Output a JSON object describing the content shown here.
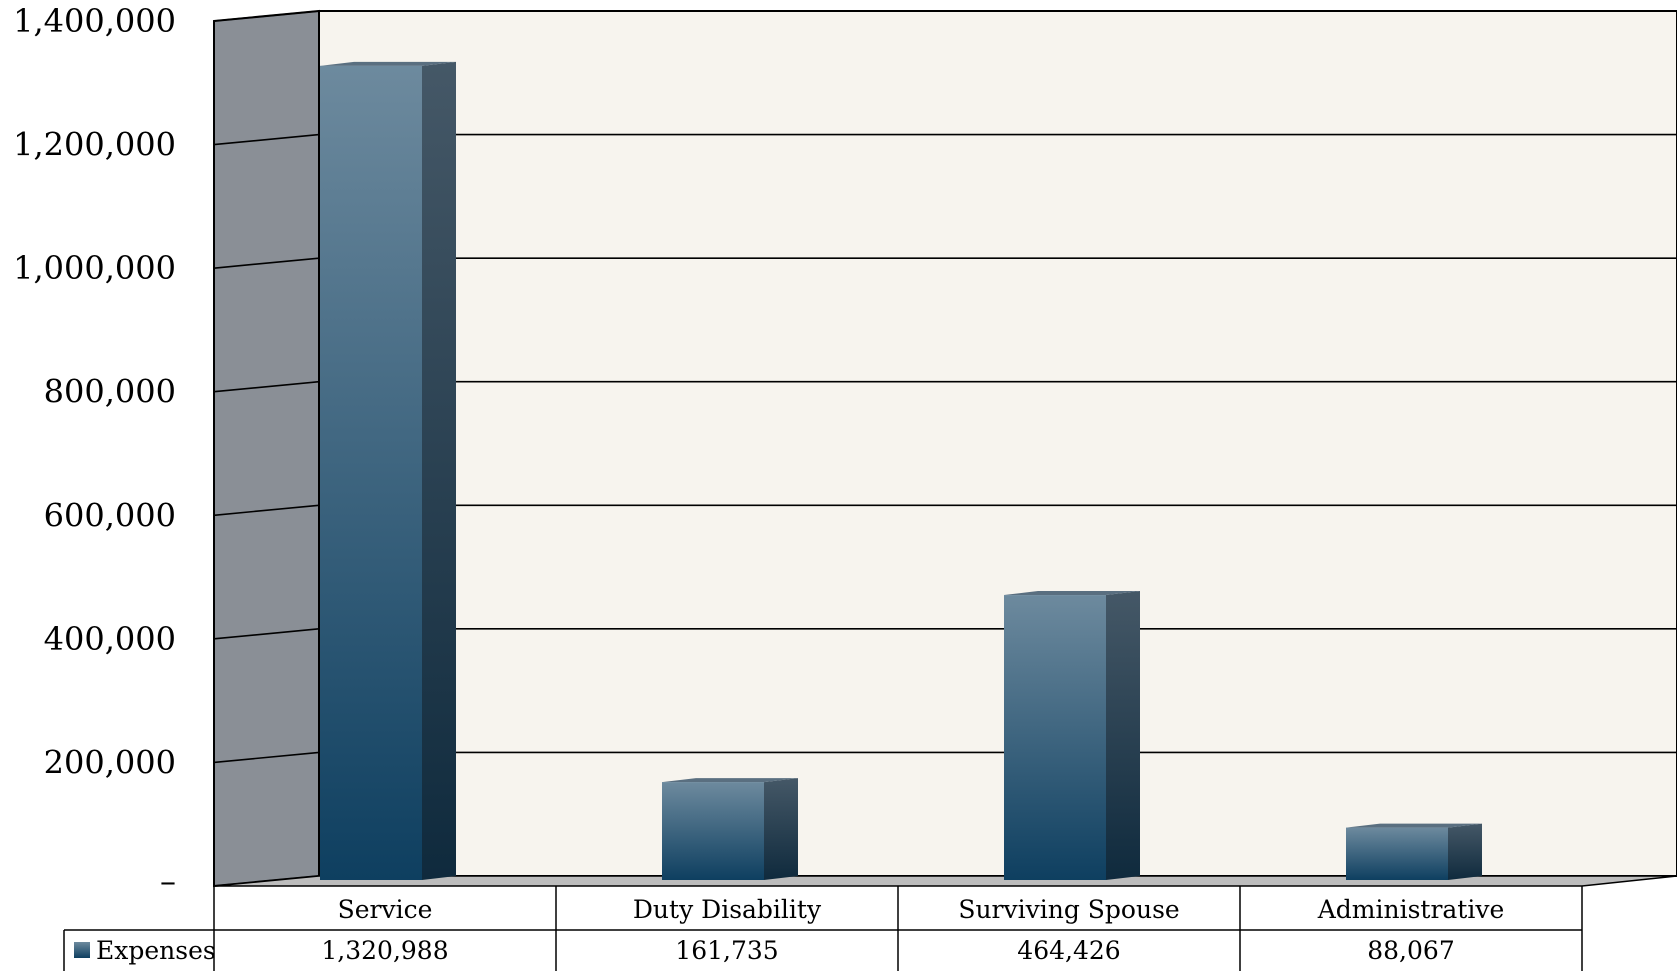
{
  "chart_data": {
    "type": "bar",
    "categories": [
      "Service",
      "Duty Disability",
      "Surviving Spouse",
      "Administrative"
    ],
    "series": [
      {
        "name": "Expenses",
        "values": [
          1320988,
          161735,
          464426,
          88067
        ],
        "labels": [
          "1,320,988",
          "161,735",
          "464,426",
          "88,067"
        ]
      }
    ],
    "ylim": [
      0,
      1400000
    ],
    "yticks": [
      0,
      200000,
      400000,
      600000,
      800000,
      1000000,
      1200000,
      1400000
    ],
    "ytick_labels": [
      "–",
      "200,000",
      "400,000",
      "600,000",
      "800,000",
      "1,000,000",
      "1,200,000",
      "1,400,000"
    ],
    "grid": true,
    "legend": "data-table-left",
    "colors": {
      "bar_top": "#6d8a9e",
      "bar_bottom": "#0e3f60",
      "bar_side": "#22384c",
      "back_wall": "#f7f4ee",
      "side_wall": "#8a8f96",
      "floor": "#bbbbbb"
    }
  }
}
